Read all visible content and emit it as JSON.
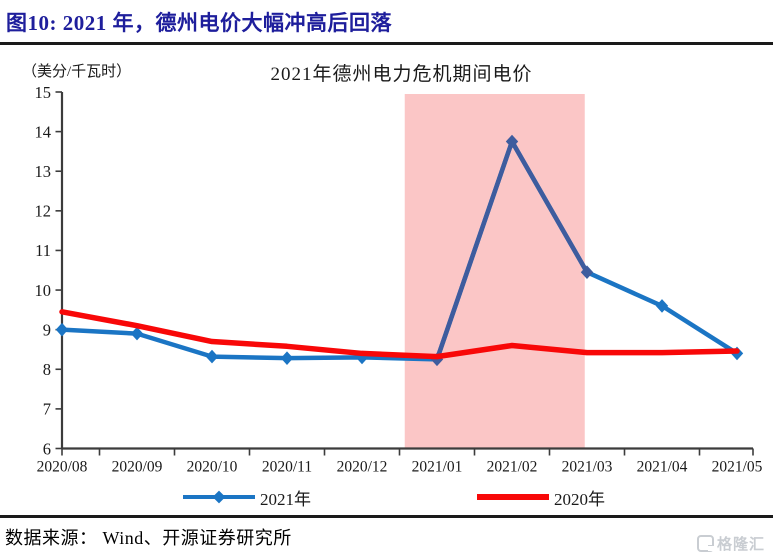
{
  "header": {
    "title": "图10:  2021 年，德州电价大幅冲高后回落"
  },
  "chart_data": {
    "type": "line",
    "title": "2021年德州电力危机期间电价",
    "unit_label": "（美分/千瓦时）",
    "categories": [
      "2020/08",
      "2020/09",
      "2020/10",
      "2020/11",
      "2020/12",
      "2021/01",
      "2021/02",
      "2021/03",
      "2021/04",
      "2021/05"
    ],
    "series": [
      {
        "name": "2021年",
        "color": "#1b75c4",
        "highlight_color": "#3e5c9e",
        "highlight_range": [
          5,
          7
        ],
        "marker": "diamond",
        "values": [
          9.0,
          8.9,
          8.32,
          8.28,
          8.3,
          8.25,
          13.75,
          10.45,
          9.6,
          8.4
        ]
      },
      {
        "name": "2020年",
        "color": "#f80808",
        "marker": "none",
        "values": [
          9.45,
          9.1,
          8.7,
          8.58,
          8.4,
          8.32,
          8.6,
          8.42,
          8.42,
          8.46
        ]
      }
    ],
    "ylim": [
      6,
      15
    ],
    "ytick_step": 1,
    "grid": false,
    "legend_position": "bottom",
    "highlight_band": {
      "from_index": 4.57,
      "to_index": 6.97,
      "color": "#fbc6c6"
    }
  },
  "footer": {
    "source": "数据来源： Wind、开源证券研究所",
    "watermark": "格隆汇"
  }
}
